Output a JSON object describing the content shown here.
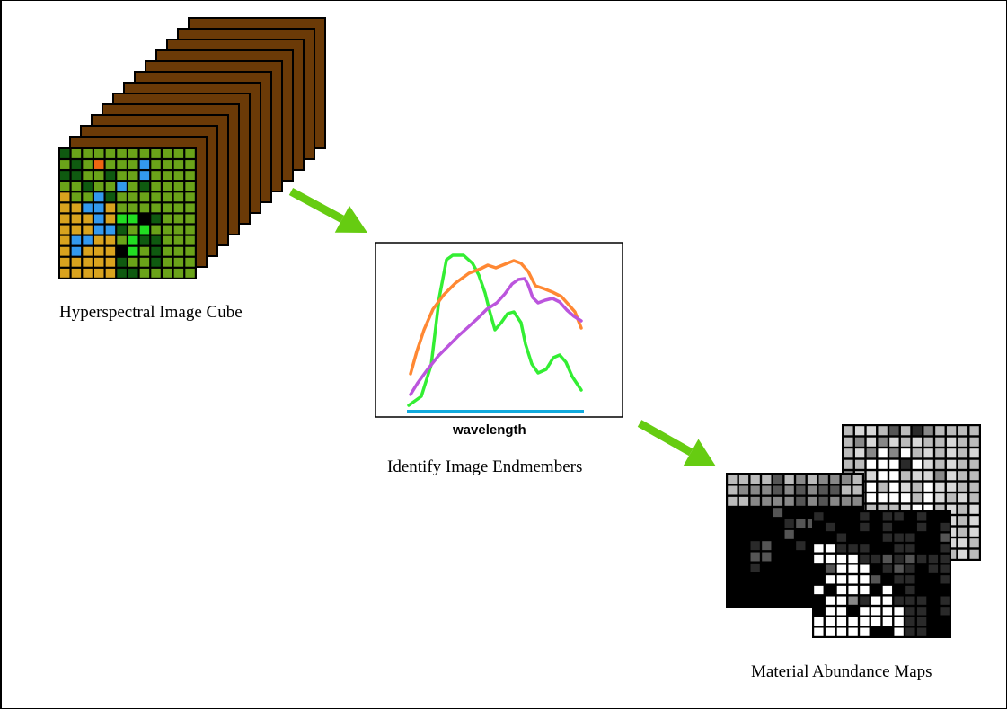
{
  "captions": {
    "cube": "Hyperspectral Image Cube",
    "endmembers": "Identify Image Endmembers",
    "maps": "Material Abundance Maps"
  },
  "spectral_plot": {
    "xlabel": "wavelength",
    "series_colors": [
      "#33ee33",
      "#ff8833",
      "#bb55dd"
    ],
    "baseline_color": "#11aadd"
  },
  "colors": {
    "band": "#6b3a07",
    "arrow": "#66cc11",
    "cube_palette": {
      "G": "#6aa319",
      "D": "#0f5a10",
      "O": "#d9a31e",
      "B": "#3399ee",
      "L": "#22dd22",
      "R": "#ee6611",
      "K": "#000000"
    }
  },
  "icons": [
    "arrow-right-down-icon",
    "arrow-right-down-icon"
  ]
}
